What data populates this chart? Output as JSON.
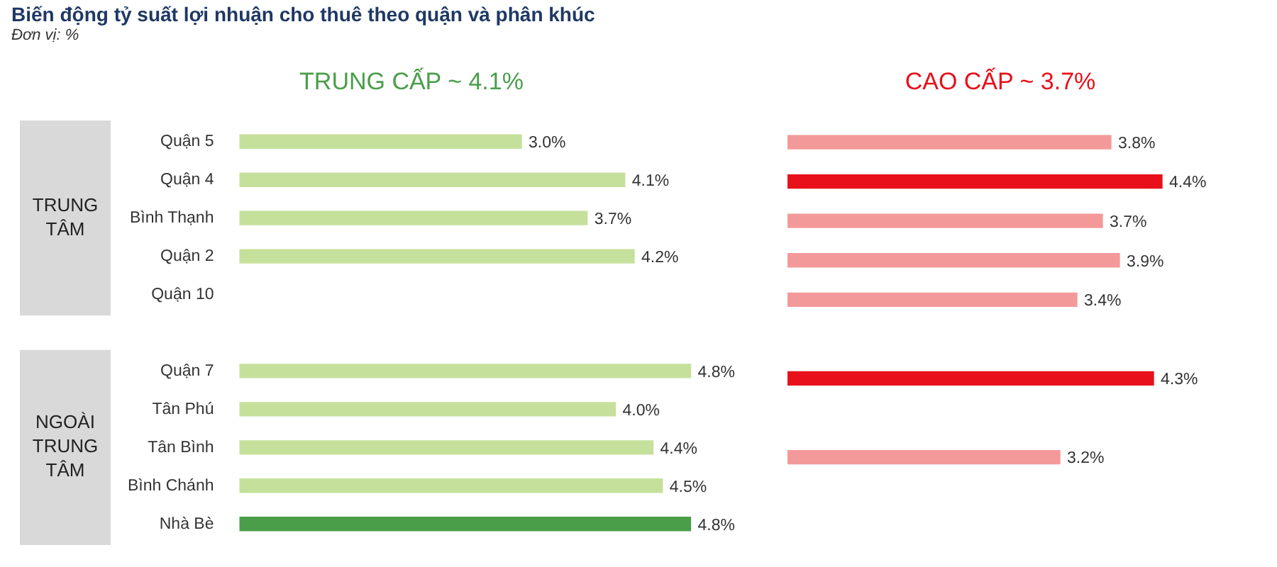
{
  "chart_data": [
    {
      "type": "other",
      "title": "Biến động tỷ suất lợi nhuận cho thuê theo quận và phân khúc",
      "subtitle": "Đơn vị: %"
    },
    {
      "type": "bar",
      "orientation": "horizontal",
      "title": "TRUNG CẤP ~ 4.1%",
      "categories": [
        "Quận 5",
        "Quận 4",
        "Bình Thạnh",
        "Quận 2",
        "Quận 10",
        null,
        "Quận 7",
        "Tân Phú",
        "Tân Bình",
        "Bình Chánh",
        "Nhà Bè"
      ],
      "series": [
        {
          "values": [
            3.0,
            4.1,
            3.7,
            4.2,
            null,
            null,
            4.8,
            4.0,
            4.4,
            4.5,
            4.8
          ],
          "colors": [
            "#c5e09b",
            "#c5e09b",
            "#c5e09b",
            "#c5e09b",
            "#c5e09b",
            "#c5e09b",
            "#c5e09b",
            "#c5e09b",
            "#c5e09b",
            "#c5e09b",
            "#4a9e4a"
          ],
          "value_labels": [
            "3.0%",
            "4.1%",
            "3.7%",
            "4.2%",
            null,
            null,
            "4.8%",
            "4.0%",
            "4.4%",
            "4.5%",
            "4.8%"
          ]
        }
      ],
      "annotations": [
        "TRUNG TÂM",
        "NGOÀI TRUNG TÂM"
      ],
      "grid": false,
      "legend": false
    },
    {
      "type": "bar",
      "orientation": "horizontal",
      "title": "CAO CẤP ~ 3.7%",
      "categories": [
        null,
        null,
        null,
        null,
        null,
        null,
        null,
        null,
        null,
        null,
        null
      ],
      "series": [
        {
          "values": [
            3.8,
            4.4,
            3.7,
            3.9,
            3.4,
            null,
            4.3,
            null,
            3.2,
            null,
            null
          ],
          "colors": [
            "#f4999a",
            "#e8101a",
            "#f4999a",
            "#f4999a",
            "#f4999a",
            "#f4999a",
            "#e8101a",
            "#f4999a",
            "#f4999a",
            "#f4999a",
            "#f4999a"
          ],
          "value_labels": [
            "3.8%",
            "4.4%",
            "3.7%",
            "3.9%",
            "3.4%",
            null,
            "4.3%",
            null,
            "3.2%",
            null,
            null
          ]
        }
      ],
      "tick_labels": false,
      "grid": false,
      "legend": false
    }
  ]
}
